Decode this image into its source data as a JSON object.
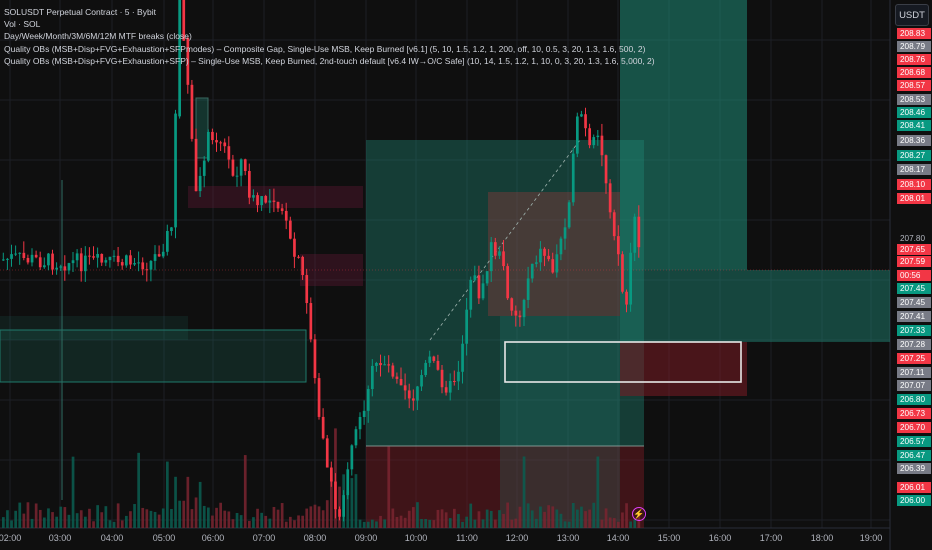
{
  "legend": {
    "symbol": "SOLUSDT Perpetual Contract · 5 · Bybit",
    "volume": "Vol · SOL",
    "indicator1": "Day/Week/Month/3M/6M/12M MTF breaks (close)",
    "indicator2": "Quality OBs (MSB+Disp+FVG+Exhaustion+SFPmodes) – Composite Gap, Single-Use MSB, Keep Burned [v6.1] (5, 10, 1.5, 1.2, 1, 200, off, 10, 0.5, 3, 20, 1.3, 1.6, 500, 2)",
    "indicator3": "Quality OBs (MSB+Disp+FVG+Exhaustion+SFP) – Single-Use MSB, Keep Burned, 2nd-touch default [v6.4 IW→O/C Safe] (10, 14, 1.5, 1.2, 1, 10, 0, 3, 20, 1.3, 1.6, 5,000, 2)"
  },
  "currency": "USDT",
  "price_axis": {
    "labels": [
      {
        "text": "208.83",
        "bg": "#f23645"
      },
      {
        "text": "208.79",
        "bg": "#787b86"
      },
      {
        "text": "208.76",
        "bg": "#f23645"
      },
      {
        "text": "208.68",
        "bg": "#f23645"
      },
      {
        "text": "208.57",
        "bg": "#f23645"
      },
      {
        "text": "208.53",
        "bg": "#787b86"
      },
      {
        "text": "208.46",
        "bg": "#089981"
      },
      {
        "text": "208.41",
        "bg": "#089981"
      },
      {
        "text": "208.36",
        "bg": "#787b86"
      },
      {
        "text": "208.27",
        "bg": "#089981"
      },
      {
        "text": "208.17",
        "bg": "#787b86"
      },
      {
        "text": "208.10",
        "bg": "#f23645"
      },
      {
        "text": "208.01",
        "bg": "#f23645"
      },
      {
        "text": "207.65",
        "bg": "#f23645"
      },
      {
        "text": "207.59",
        "bg": "#f23645"
      },
      {
        "text": "00:56",
        "bg": "#f23645"
      },
      {
        "text": "207.45",
        "bg": "#089981"
      },
      {
        "text": "207.45",
        "bg": "#787b86"
      },
      {
        "text": "207.41",
        "bg": "#787b86"
      },
      {
        "text": "207.33",
        "bg": "#089981"
      },
      {
        "text": "207.28",
        "bg": "#787b86"
      },
      {
        "text": "207.25",
        "bg": "#f23645"
      },
      {
        "text": "207.11",
        "bg": "#787b86"
      },
      {
        "text": "207.07",
        "bg": "#787b86"
      },
      {
        "text": "206.80",
        "bg": "#089981"
      },
      {
        "text": "206.73",
        "bg": "#f23645"
      },
      {
        "text": "206.70",
        "bg": "#f23645"
      },
      {
        "text": "206.57",
        "bg": "#089981"
      },
      {
        "text": "206.47",
        "bg": "#089981"
      },
      {
        "text": "206.39",
        "bg": "#787b86"
      },
      {
        "text": "206.01",
        "bg": "#f23645"
      },
      {
        "text": "206.00",
        "bg": "#089981"
      }
    ],
    "plain": "207.80"
  },
  "chart_data": {
    "type": "candlestick",
    "symbol": "SOLUSDT",
    "interval": "5",
    "x_ticks": [
      "02:00",
      "03:00",
      "04:00",
      "05:00",
      "06:00",
      "07:00",
      "08:00",
      "09:00",
      "10:00",
      "11:00",
      "12:00",
      "13:00",
      "14:00",
      "15:00",
      "16:00",
      "17:00",
      "18:00",
      "19:00"
    ],
    "last_price": 207.59,
    "countdown": "00:56",
    "grid": true,
    "colors": {
      "up": "#089981",
      "down": "#f23645",
      "bg": "#0f0f0f"
    }
  }
}
